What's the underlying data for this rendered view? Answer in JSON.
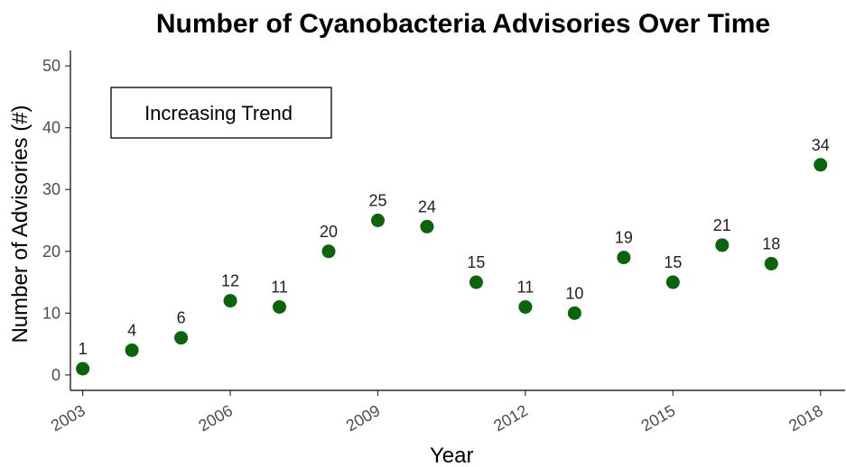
{
  "chart_data": {
    "type": "scatter",
    "title": "Number of Cyanobacteria Advisories Over Time",
    "xlabel": "Year",
    "ylabel": "Number of Advisories (#)",
    "x": [
      2003,
      2004,
      2005,
      2006,
      2007,
      2008,
      2009,
      2010,
      2011,
      2012,
      2013,
      2014,
      2015,
      2016,
      2017,
      2018
    ],
    "y": [
      1,
      4,
      6,
      12,
      11,
      20,
      25,
      24,
      15,
      11,
      10,
      19,
      15,
      21,
      18,
      34
    ],
    "data_labels": [
      "1",
      "4",
      "6",
      "12",
      "11",
      "20",
      "25",
      "24",
      "15",
      "11",
      "10",
      "19",
      "15",
      "21",
      "18",
      "34"
    ],
    "xticks": [
      "2003",
      "2006",
      "2009",
      "2012",
      "2015",
      "2018"
    ],
    "yticks": [
      "0",
      "10",
      "20",
      "30",
      "40",
      "50"
    ],
    "xlim": [
      2002.75,
      2018.5
    ],
    "ylim": [
      -2.5,
      52.5
    ],
    "annotation": "Increasing Trend",
    "marker_color": "#0a640a",
    "grid": false
  }
}
